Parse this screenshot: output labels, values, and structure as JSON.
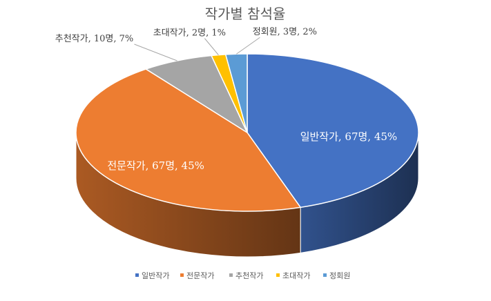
{
  "chart_data": {
    "type": "pie",
    "title": "작가별 참석율",
    "categories": [
      "일반작가",
      "전문작가",
      "추천작가",
      "초대작가",
      "정회원"
    ],
    "values": [
      67,
      67,
      10,
      2,
      3
    ],
    "percent_labels": [
      "45%",
      "45%",
      "7%",
      "1%",
      "2%"
    ],
    "unit": "명",
    "data_labels": [
      "일반작가, 67명, 45%",
      "전문작가, 67명, 45%",
      "추천작가, 10명, 7%",
      "초대작가, 2명, 1%",
      "정회원, 3명, 2%"
    ],
    "colors": [
      "#4472C4",
      "#ED7D31",
      "#A5A5A5",
      "#FFC000",
      "#5B9BD5"
    ],
    "legend_position": "bottom",
    "style": "3d-pie"
  }
}
